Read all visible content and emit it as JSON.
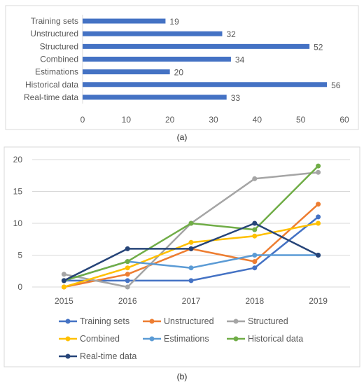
{
  "captions": {
    "a": "(a)",
    "b": "(b)"
  },
  "colors": {
    "bar": "#4472C4",
    "axis": "#d9d9d9",
    "grid": "#d9d9d9",
    "frame": "#d9d9d9",
    "text": "#595959"
  },
  "chart_data": [
    {
      "type": "bar",
      "orientation": "horizontal",
      "title": "",
      "xlabel": "",
      "ylabel": "",
      "categories": [
        "Training sets",
        "Unstructured",
        "Structured",
        "Combined",
        "Estimations",
        "Historical data",
        "Real-time data"
      ],
      "values": [
        19,
        32,
        52,
        34,
        20,
        56,
        33
      ],
      "xlim": [
        0,
        60
      ],
      "xticks": [
        0,
        10,
        20,
        30,
        40,
        50,
        60
      ],
      "grid": false,
      "data_labels": true
    },
    {
      "type": "line",
      "title": "",
      "xlabel": "",
      "ylabel": "",
      "x": [
        "2015",
        "2016",
        "2017",
        "2018",
        "2019"
      ],
      "ylim": [
        0,
        20
      ],
      "yticks": [
        0,
        5,
        10,
        15,
        20
      ],
      "grid": true,
      "legend_position": "bottom",
      "series": [
        {
          "name": "Training sets",
          "color": "#4472C4",
          "values": [
            1,
            1,
            1,
            3,
            11
          ]
        },
        {
          "name": "Unstructured",
          "color": "#ED7D31",
          "values": [
            0,
            2,
            6,
            4,
            13
          ]
        },
        {
          "name": "Structured",
          "color": "#A5A5A5",
          "values": [
            2,
            0,
            10,
            17,
            18
          ]
        },
        {
          "name": "Combined",
          "color": "#FFC000",
          "values": [
            0,
            3,
            7,
            8,
            10
          ]
        },
        {
          "name": "Estimations",
          "color": "#5B9BD5",
          "values": [
            1,
            4,
            3,
            5,
            5
          ]
        },
        {
          "name": "Historical data",
          "color": "#70AD47",
          "values": [
            1,
            4,
            10,
            9,
            19
          ]
        },
        {
          "name": "Real-time data",
          "color": "#264478",
          "values": [
            1,
            6,
            6,
            10,
            5
          ]
        }
      ]
    }
  ]
}
